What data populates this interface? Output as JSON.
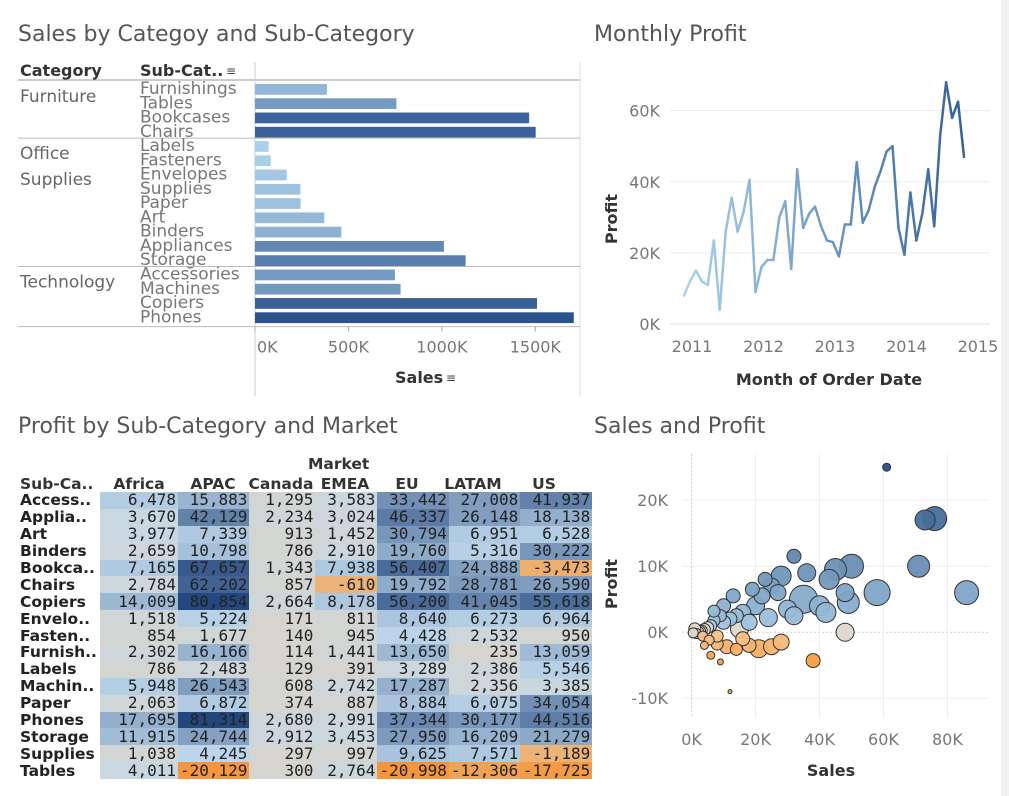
{
  "titles": {
    "sales_by_cat": "Sales by Categoy and Sub-Category",
    "monthly_profit": "Monthly Profit",
    "profit_market": "Profit by Sub-Category and Market",
    "sales_profit": "Sales and Profit"
  },
  "bar_panel": {
    "col_category": "Category",
    "col_subcat": "Sub-Cat..",
    "sort_icon": "sort-descending-icon",
    "x_title": "Sales"
  },
  "line_panel": {
    "y_title": "Profit",
    "x_title": "Month of Order Date"
  },
  "heatmap": {
    "market_label": "Market",
    "row_header": "Sub-Ca..",
    "markets": [
      "Africa",
      "APAC",
      "Canada",
      "EMEA",
      "EU",
      "LATAM",
      "US"
    ],
    "rows": [
      {
        "label": "Access..",
        "values": [
          6478,
          15883,
          1295,
          3583,
          33442,
          27008,
          41937
        ],
        "text": [
          "6,478",
          "15,883",
          "1,295",
          "3,583",
          "33,442",
          "27,008",
          "41,937"
        ]
      },
      {
        "label": "Applia..",
        "values": [
          3670,
          42129,
          2234,
          3024,
          46337,
          26148,
          18138
        ],
        "text": [
          "3,670",
          "42,129",
          "2,234",
          "3,024",
          "46,337",
          "26,148",
          "18,138"
        ]
      },
      {
        "label": "Art",
        "values": [
          3977,
          7339,
          913,
          1452,
          30794,
          6951,
          6528
        ],
        "text": [
          "3,977",
          "7,339",
          "913",
          "1,452",
          "30,794",
          "6,951",
          "6,528"
        ]
      },
      {
        "label": "Binders",
        "values": [
          2659,
          10798,
          786,
          2910,
          19760,
          5316,
          30222
        ],
        "text": [
          "2,659",
          "10,798",
          "786",
          "2,910",
          "19,760",
          "5,316",
          "30,222"
        ]
      },
      {
        "label": "Bookca..",
        "values": [
          7165,
          67657,
          1343,
          7938,
          56407,
          24888,
          -3473
        ],
        "text": [
          "7,165",
          "67,657",
          "1,343",
          "7,938",
          "56,407",
          "24,888",
          "-3,473"
        ]
      },
      {
        "label": "Chairs",
        "values": [
          2784,
          62202,
          857,
          -610,
          19792,
          28781,
          26590
        ],
        "text": [
          "2,784",
          "62,202",
          "857",
          "-610",
          "19,792",
          "28,781",
          "26,590"
        ]
      },
      {
        "label": "Copiers",
        "values": [
          14009,
          80854,
          2664,
          8178,
          56200,
          41045,
          55618
        ],
        "text": [
          "14,009",
          "80,854",
          "2,664",
          "8,178",
          "56,200",
          "41,045",
          "55,618"
        ]
      },
      {
        "label": "Envelo..",
        "values": [
          1518,
          5224,
          171,
          811,
          8640,
          6273,
          6964
        ],
        "text": [
          "1,518",
          "5,224",
          "171",
          "811",
          "8,640",
          "6,273",
          "6,964"
        ]
      },
      {
        "label": "Fasten..",
        "values": [
          854,
          1677,
          140,
          945,
          4428,
          2532,
          950
        ],
        "text": [
          "854",
          "1,677",
          "140",
          "945",
          "4,428",
          "2,532",
          "950"
        ]
      },
      {
        "label": "Furnish..",
        "values": [
          2302,
          16166,
          114,
          1441,
          13650,
          235,
          13059
        ],
        "text": [
          "2,302",
          "16,166",
          "114",
          "1,441",
          "13,650",
          "235",
          "13,059"
        ]
      },
      {
        "label": "Labels",
        "values": [
          786,
          2483,
          129,
          391,
          3289,
          2386,
          5546
        ],
        "text": [
          "786",
          "2,483",
          "129",
          "391",
          "3,289",
          "2,386",
          "5,546"
        ]
      },
      {
        "label": "Machin..",
        "values": [
          5948,
          26543,
          608,
          2742,
          17287,
          2356,
          3385
        ],
        "text": [
          "5,948",
          "26,543",
          "608",
          "2,742",
          "17,287",
          "2,356",
          "3,385"
        ]
      },
      {
        "label": "Paper",
        "values": [
          2063,
          6872,
          374,
          887,
          8884,
          6075,
          34054
        ],
        "text": [
          "2,063",
          "6,872",
          "374",
          "887",
          "8,884",
          "6,075",
          "34,054"
        ]
      },
      {
        "label": "Phones",
        "values": [
          17695,
          81314,
          2680,
          2991,
          37344,
          30177,
          44516
        ],
        "text": [
          "17,695",
          "81,314",
          "2,680",
          "2,991",
          "37,344",
          "30,177",
          "44,516"
        ]
      },
      {
        "label": "Storage",
        "values": [
          11915,
          24744,
          2912,
          3453,
          27950,
          16209,
          21279
        ],
        "text": [
          "11,915",
          "24,744",
          "2,912",
          "3,453",
          "27,950",
          "16,209",
          "21,279"
        ]
      },
      {
        "label": "Supplies",
        "values": [
          1038,
          4245,
          297,
          997,
          9625,
          7571,
          -1189
        ],
        "text": [
          "1,038",
          "4,245",
          "297",
          "997",
          "9,625",
          "7,571",
          "-1,189"
        ]
      },
      {
        "label": "Tables",
        "values": [
          4011,
          -20129,
          300,
          2764,
          -20998,
          -12306,
          -17725
        ],
        "text": [
          "4,011",
          "-20,129",
          "300",
          "2,764",
          "-20,998",
          "-12,306",
          "-17,725"
        ]
      }
    ]
  },
  "chart_data": [
    {
      "type": "bar",
      "title": "Sales by Categoy and Sub-Category",
      "xlabel": "Sales",
      "orientation": "horizontal",
      "xlim": [
        0,
        1800000
      ],
      "xticks": [
        "0K",
        "500K",
        "1000K",
        "1500K"
      ],
      "groups": [
        {
          "category": "Furniture",
          "items": [
            {
              "name": "Furnishings",
              "value": 385000
            },
            {
              "name": "Tables",
              "value": 757000
            },
            {
              "name": "Bookcases",
              "value": 1467000
            },
            {
              "name": "Chairs",
              "value": 1502000
            }
          ]
        },
        {
          "category": "Office Supplies",
          "items": [
            {
              "name": "Labels",
              "value": 73000
            },
            {
              "name": "Fasteners",
              "value": 84000
            },
            {
              "name": "Envelopes",
              "value": 170000
            },
            {
              "name": "Supplies",
              "value": 243000
            },
            {
              "name": "Paper",
              "value": 244000
            },
            {
              "name": "Art",
              "value": 371000
            },
            {
              "name": "Binders",
              "value": 462000
            },
            {
              "name": "Appliances",
              "value": 1011000
            },
            {
              "name": "Storage",
              "value": 1127000
            }
          ]
        },
        {
          "category": "Technology",
          "items": [
            {
              "name": "Accessories",
              "value": 749000
            },
            {
              "name": "Machines",
              "value": 779000
            },
            {
              "name": "Copiers",
              "value": 1509000
            },
            {
              "name": "Phones",
              "value": 1706000
            }
          ]
        }
      ]
    },
    {
      "type": "line",
      "title": "Monthly Profit",
      "xlabel": "Month of Order Date",
      "ylabel": "Profit",
      "ylim": [
        0,
        72000
      ],
      "yticks": [
        "0K",
        "20K",
        "40K",
        "60K"
      ],
      "xticks": [
        "2011",
        "2012",
        "2013",
        "2014",
        "2015"
      ],
      "x_start": "2011-01",
      "values": [
        8000,
        12000,
        15000,
        12000,
        11000,
        23500,
        4000,
        26000,
        35500,
        26000,
        31500,
        40500,
        9000,
        16000,
        18000,
        18000,
        30000,
        34500,
        15500,
        43500,
        27000,
        31000,
        33000,
        27500,
        23500,
        23000,
        19000,
        28000,
        28000,
        45500,
        28500,
        32000,
        38500,
        43000,
        48500,
        50000,
        27000,
        19500,
        37000,
        23500,
        31000,
        43500,
        27500,
        53000,
        68000,
        58000,
        62500,
        47000
      ]
    },
    {
      "type": "heatmap",
      "title": "Profit by Sub-Category and Market",
      "source": "heatmap"
    },
    {
      "type": "scatter",
      "title": "Sales and Profit",
      "xlabel": "Sales",
      "ylabel": "Profit",
      "xlim": [
        -3000,
        93000
      ],
      "ylim": [
        -13000,
        27000
      ],
      "xticks": [
        "0K",
        "20K",
        "40K",
        "60K",
        "80K"
      ],
      "yticks": [
        "-10K",
        "0K",
        "10K",
        "20K"
      ],
      "points": [
        {
          "x": 61000,
          "y": 25000,
          "r": 4
        },
        {
          "x": 73000,
          "y": 17000,
          "r": 10
        },
        {
          "x": 76000,
          "y": 17200,
          "r": 12
        },
        {
          "x": 71000,
          "y": 10000,
          "r": 11
        },
        {
          "x": 86000,
          "y": 6000,
          "r": 12
        },
        {
          "x": 50000,
          "y": 10000,
          "r": 12
        },
        {
          "x": 45000,
          "y": 9500,
          "r": 11
        },
        {
          "x": 36000,
          "y": 9000,
          "r": 9
        },
        {
          "x": 43000,
          "y": 8000,
          "r": 10
        },
        {
          "x": 32000,
          "y": 11500,
          "r": 7
        },
        {
          "x": 28000,
          "y": 8500,
          "r": 10
        },
        {
          "x": 48000,
          "y": 6000,
          "r": 9
        },
        {
          "x": 58000,
          "y": 6000,
          "r": 13
        },
        {
          "x": 49000,
          "y": 4500,
          "r": 11
        },
        {
          "x": 35000,
          "y": 5000,
          "r": 14
        },
        {
          "x": 40000,
          "y": 4000,
          "r": 10
        },
        {
          "x": 25000,
          "y": 7000,
          "r": 8
        },
        {
          "x": 30000,
          "y": 3500,
          "r": 9
        },
        {
          "x": 22000,
          "y": 5500,
          "r": 8
        },
        {
          "x": 20000,
          "y": 4000,
          "r": 9
        },
        {
          "x": 16000,
          "y": 3000,
          "r": 8
        },
        {
          "x": 14000,
          "y": 2500,
          "r": 7
        },
        {
          "x": 12000,
          "y": 2000,
          "r": 7
        },
        {
          "x": 10000,
          "y": 1500,
          "r": 7
        },
        {
          "x": 9000,
          "y": 2500,
          "r": 6
        },
        {
          "x": 7000,
          "y": 1800,
          "r": 6
        },
        {
          "x": 6000,
          "y": 1000,
          "r": 6
        },
        {
          "x": 5000,
          "y": 700,
          "r": 6
        },
        {
          "x": 4000,
          "y": 400,
          "r": 6
        },
        {
          "x": 3000,
          "y": 200,
          "r": 6
        },
        {
          "x": 2500,
          "y": 100,
          "r": 6
        },
        {
          "x": 2000,
          "y": 0,
          "r": 6
        },
        {
          "x": 1500,
          "y": -200,
          "r": 5
        },
        {
          "x": 3500,
          "y": -600,
          "r": 5
        },
        {
          "x": 5500,
          "y": -1200,
          "r": 5
        },
        {
          "x": 8000,
          "y": -1800,
          "r": 6
        },
        {
          "x": 11000,
          "y": -2200,
          "r": 7
        },
        {
          "x": 14000,
          "y": -2600,
          "r": 6
        },
        {
          "x": 18000,
          "y": -2000,
          "r": 7
        },
        {
          "x": 21000,
          "y": -2500,
          "r": 9
        },
        {
          "x": 25000,
          "y": -2200,
          "r": 8
        },
        {
          "x": 28000,
          "y": -1500,
          "r": 8
        },
        {
          "x": 38000,
          "y": -4300,
          "r": 7
        },
        {
          "x": 48000,
          "y": 0,
          "r": 9
        },
        {
          "x": 12000,
          "y": -9000,
          "r": 2
        },
        {
          "x": 6000,
          "y": -3500,
          "r": 4
        },
        {
          "x": 9000,
          "y": -4500,
          "r": 3
        },
        {
          "x": 4000,
          "y": -2000,
          "r": 4
        },
        {
          "x": 15000,
          "y": 500,
          "r": 9
        },
        {
          "x": 18000,
          "y": 1500,
          "r": 8
        },
        {
          "x": 24000,
          "y": 2200,
          "r": 9
        },
        {
          "x": 32000,
          "y": 2500,
          "r": 9
        },
        {
          "x": 42000,
          "y": 3000,
          "r": 10
        },
        {
          "x": 27000,
          "y": 6000,
          "r": 8
        },
        {
          "x": 19000,
          "y": 6500,
          "r": 7
        },
        {
          "x": 23000,
          "y": 8000,
          "r": 7
        },
        {
          "x": 10000,
          "y": 4000,
          "r": 7
        },
        {
          "x": 13000,
          "y": 5500,
          "r": 7
        },
        {
          "x": 7000,
          "y": 3200,
          "r": 6
        },
        {
          "x": 1000,
          "y": 500,
          "r": 6
        },
        {
          "x": 500,
          "y": -100,
          "r": 5
        },
        {
          "x": 8000,
          "y": -600,
          "r": 6
        },
        {
          "x": 16000,
          "y": -1000,
          "r": 7
        }
      ]
    }
  ]
}
